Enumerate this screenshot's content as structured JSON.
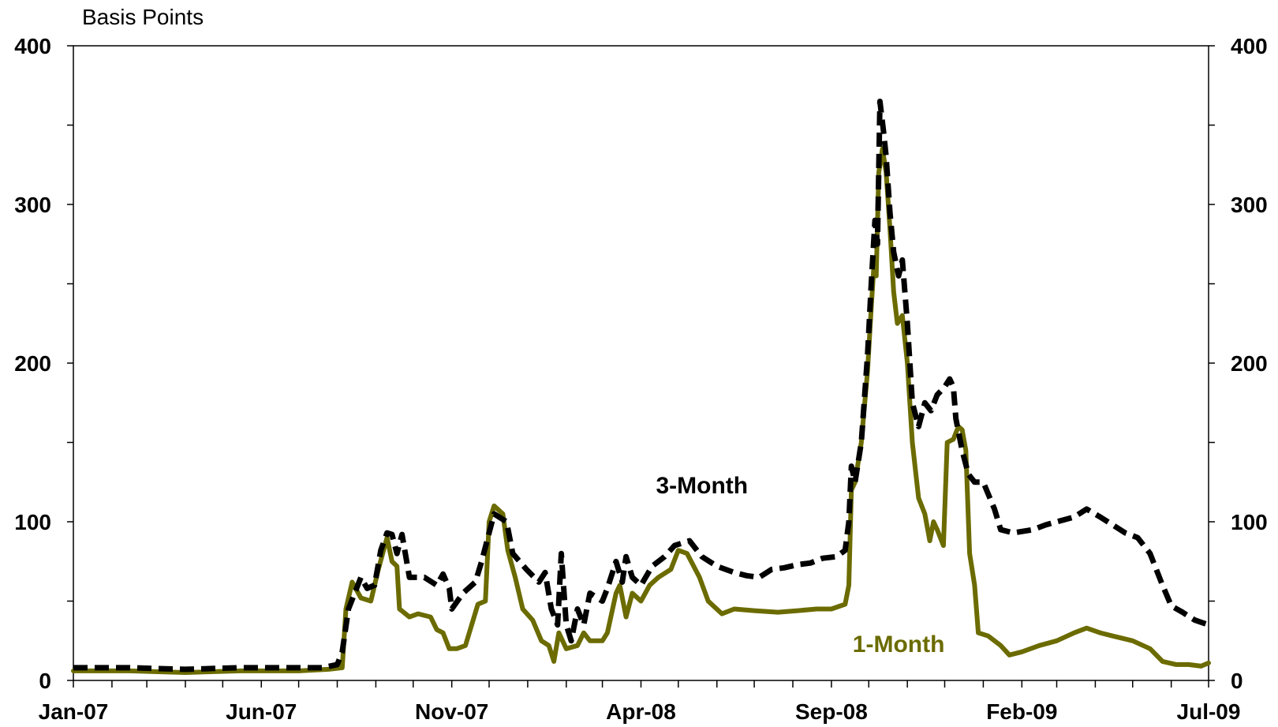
{
  "chart_data": {
    "type": "line",
    "title": "",
    "ylabel": "Basis Points",
    "xlabel": "",
    "ylim": [
      0,
      400
    ],
    "y_ticks": [
      0,
      100,
      200,
      300,
      400
    ],
    "x_range": [
      "2007-01-01",
      "2009-07-01"
    ],
    "x_ticks": [
      {
        "date": "2007-01-01",
        "label": "Jan-07"
      },
      {
        "date": "2007-06-01",
        "label": "Jun-07"
      },
      {
        "date": "2007-11-01",
        "label": "Nov-07"
      },
      {
        "date": "2008-04-01",
        "label": "Apr-08"
      },
      {
        "date": "2008-09-01",
        "label": "Sep-08"
      },
      {
        "date": "2009-02-01",
        "label": "Feb-09"
      },
      {
        "date": "2009-07-01",
        "label": "Jul-09"
      }
    ],
    "grid": false,
    "series": [
      {
        "name": "3-Month",
        "color": "#000000",
        "style": "dashed",
        "points": [
          [
            "2007-01-01",
            8
          ],
          [
            "2007-02-15",
            8
          ],
          [
            "2007-04-01",
            7
          ],
          [
            "2007-05-15",
            8
          ],
          [
            "2007-07-01",
            8
          ],
          [
            "2007-07-20",
            8
          ],
          [
            "2007-08-01",
            10
          ],
          [
            "2007-08-05",
            18
          ],
          [
            "2007-08-10",
            45
          ],
          [
            "2007-08-15",
            55
          ],
          [
            "2007-08-20",
            65
          ],
          [
            "2007-08-25",
            58
          ],
          [
            "2007-08-31",
            60
          ],
          [
            "2007-09-05",
            82
          ],
          [
            "2007-09-10",
            93
          ],
          [
            "2007-09-14",
            92
          ],
          [
            "2007-09-18",
            80
          ],
          [
            "2007-09-22",
            92
          ],
          [
            "2007-09-28",
            65
          ],
          [
            "2007-10-10",
            65
          ],
          [
            "2007-10-20",
            60
          ],
          [
            "2007-10-25",
            67
          ],
          [
            "2007-10-30",
            58
          ],
          [
            "2007-11-01",
            45
          ],
          [
            "2007-11-10",
            55
          ],
          [
            "2007-11-20",
            62
          ],
          [
            "2007-11-25",
            75
          ],
          [
            "2007-11-30",
            90
          ],
          [
            "2007-12-05",
            105
          ],
          [
            "2007-12-15",
            100
          ],
          [
            "2007-12-20",
            80
          ],
          [
            "2007-12-31",
            70
          ],
          [
            "2008-01-10",
            62
          ],
          [
            "2008-01-15",
            68
          ],
          [
            "2008-01-20",
            45
          ],
          [
            "2008-01-25",
            35
          ],
          [
            "2008-01-28",
            80
          ],
          [
            "2008-02-01",
            35
          ],
          [
            "2008-02-05",
            25
          ],
          [
            "2008-02-10",
            45
          ],
          [
            "2008-02-15",
            35
          ],
          [
            "2008-02-20",
            55
          ],
          [
            "2008-03-01",
            50
          ],
          [
            "2008-03-05",
            58
          ],
          [
            "2008-03-12",
            75
          ],
          [
            "2008-03-17",
            62
          ],
          [
            "2008-03-20",
            78
          ],
          [
            "2008-03-25",
            65
          ],
          [
            "2008-04-01",
            60
          ],
          [
            "2008-04-10",
            72
          ],
          [
            "2008-04-20",
            78
          ],
          [
            "2008-04-28",
            85
          ],
          [
            "2008-05-10",
            88
          ],
          [
            "2008-05-20",
            78
          ],
          [
            "2008-06-01",
            72
          ],
          [
            "2008-06-15",
            68
          ],
          [
            "2008-06-25",
            66
          ],
          [
            "2008-07-05",
            65
          ],
          [
            "2008-07-15",
            70
          ],
          [
            "2008-07-25",
            71
          ],
          [
            "2008-08-05",
            73
          ],
          [
            "2008-08-15",
            74
          ],
          [
            "2008-08-25",
            77
          ],
          [
            "2008-09-05",
            78
          ],
          [
            "2008-09-12",
            82
          ],
          [
            "2008-09-15",
            100
          ],
          [
            "2008-09-17",
            135
          ],
          [
            "2008-09-20",
            125
          ],
          [
            "2008-09-25",
            150
          ],
          [
            "2008-09-30",
            205
          ],
          [
            "2008-10-03",
            250
          ],
          [
            "2008-10-06",
            290
          ],
          [
            "2008-10-08",
            275
          ],
          [
            "2008-10-10",
            365
          ],
          [
            "2008-10-13",
            345
          ],
          [
            "2008-10-15",
            330
          ],
          [
            "2008-10-18",
            295
          ],
          [
            "2008-10-21",
            270
          ],
          [
            "2008-10-25",
            255
          ],
          [
            "2008-10-28",
            265
          ],
          [
            "2008-11-01",
            225
          ],
          [
            "2008-11-05",
            175
          ],
          [
            "2008-11-10",
            160
          ],
          [
            "2008-11-15",
            175
          ],
          [
            "2008-11-20",
            170
          ],
          [
            "2008-11-25",
            180
          ],
          [
            "2008-12-01",
            185
          ],
          [
            "2008-12-05",
            190
          ],
          [
            "2008-12-08",
            185
          ],
          [
            "2008-12-10",
            165
          ],
          [
            "2008-12-15",
            145
          ],
          [
            "2008-12-20",
            130
          ],
          [
            "2008-12-25",
            125
          ],
          [
            "2009-01-01",
            125
          ],
          [
            "2009-01-10",
            108
          ],
          [
            "2009-01-15",
            95
          ],
          [
            "2009-01-25",
            93
          ],
          [
            "2009-02-10",
            95
          ],
          [
            "2009-02-20",
            98
          ],
          [
            "2009-03-01",
            100
          ],
          [
            "2009-03-15",
            103
          ],
          [
            "2009-03-25",
            108
          ],
          [
            "2009-04-05",
            103
          ],
          [
            "2009-04-15",
            98
          ],
          [
            "2009-04-25",
            93
          ],
          [
            "2009-05-05",
            90
          ],
          [
            "2009-05-15",
            80
          ],
          [
            "2009-05-25",
            60
          ],
          [
            "2009-06-01",
            47
          ],
          [
            "2009-06-10",
            43
          ],
          [
            "2009-06-20",
            38
          ],
          [
            "2009-07-01",
            35
          ]
        ]
      },
      {
        "name": "1-Month",
        "color": "#6b6b00",
        "style": "solid",
        "points": [
          [
            "2007-01-01",
            6
          ],
          [
            "2007-02-15",
            6
          ],
          [
            "2007-04-01",
            5
          ],
          [
            "2007-05-15",
            6
          ],
          [
            "2007-07-01",
            6
          ],
          [
            "2007-07-25",
            7
          ],
          [
            "2007-08-05",
            8
          ],
          [
            "2007-08-08",
            45
          ],
          [
            "2007-08-13",
            62
          ],
          [
            "2007-08-20",
            52
          ],
          [
            "2007-08-28",
            50
          ],
          [
            "2007-09-03",
            70
          ],
          [
            "2007-09-10",
            90
          ],
          [
            "2007-09-14",
            75
          ],
          [
            "2007-09-18",
            72
          ],
          [
            "2007-09-20",
            45
          ],
          [
            "2007-09-28",
            40
          ],
          [
            "2007-10-05",
            42
          ],
          [
            "2007-10-15",
            40
          ],
          [
            "2007-10-20",
            32
          ],
          [
            "2007-10-25",
            30
          ],
          [
            "2007-10-30",
            20
          ],
          [
            "2007-11-05",
            20
          ],
          [
            "2007-11-12",
            22
          ],
          [
            "2007-11-17",
            35
          ],
          [
            "2007-11-22",
            48
          ],
          [
            "2007-11-28",
            50
          ],
          [
            "2007-12-01",
            100
          ],
          [
            "2007-12-05",
            110
          ],
          [
            "2007-12-12",
            105
          ],
          [
            "2007-12-16",
            82
          ],
          [
            "2007-12-22",
            65
          ],
          [
            "2007-12-28",
            45
          ],
          [
            "2008-01-05",
            38
          ],
          [
            "2008-01-12",
            25
          ],
          [
            "2008-01-18",
            22
          ],
          [
            "2008-01-22",
            12
          ],
          [
            "2008-01-26",
            30
          ],
          [
            "2008-02-01",
            20
          ],
          [
            "2008-02-10",
            22
          ],
          [
            "2008-02-15",
            30
          ],
          [
            "2008-02-20",
            25
          ],
          [
            "2008-03-01",
            25
          ],
          [
            "2008-03-05",
            30
          ],
          [
            "2008-03-12",
            55
          ],
          [
            "2008-03-15",
            60
          ],
          [
            "2008-03-20",
            40
          ],
          [
            "2008-03-25",
            55
          ],
          [
            "2008-04-01",
            50
          ],
          [
            "2008-04-08",
            60
          ],
          [
            "2008-04-15",
            65
          ],
          [
            "2008-04-25",
            70
          ],
          [
            "2008-05-01",
            82
          ],
          [
            "2008-05-08",
            80
          ],
          [
            "2008-05-18",
            65
          ],
          [
            "2008-05-25",
            50
          ],
          [
            "2008-06-05",
            42
          ],
          [
            "2008-06-15",
            45
          ],
          [
            "2008-07-01",
            44
          ],
          [
            "2008-07-20",
            43
          ],
          [
            "2008-08-05",
            44
          ],
          [
            "2008-08-20",
            45
          ],
          [
            "2008-09-01",
            45
          ],
          [
            "2008-09-12",
            48
          ],
          [
            "2008-09-15",
            60
          ],
          [
            "2008-09-17",
            120
          ],
          [
            "2008-09-20",
            125
          ],
          [
            "2008-09-25",
            150
          ],
          [
            "2008-09-30",
            195
          ],
          [
            "2008-10-03",
            235
          ],
          [
            "2008-10-05",
            260
          ],
          [
            "2008-10-07",
            255
          ],
          [
            "2008-10-09",
            320
          ],
          [
            "2008-10-12",
            335
          ],
          [
            "2008-10-15",
            320
          ],
          [
            "2008-10-18",
            285
          ],
          [
            "2008-10-21",
            245
          ],
          [
            "2008-10-24",
            225
          ],
          [
            "2008-10-28",
            230
          ],
          [
            "2008-11-01",
            200
          ],
          [
            "2008-11-05",
            150
          ],
          [
            "2008-11-10",
            115
          ],
          [
            "2008-11-15",
            105
          ],
          [
            "2008-11-19",
            88
          ],
          [
            "2008-11-22",
            100
          ],
          [
            "2008-11-25",
            95
          ],
          [
            "2008-11-30",
            85
          ],
          [
            "2008-12-03",
            150
          ],
          [
            "2008-12-08",
            152
          ],
          [
            "2008-12-12",
            160
          ],
          [
            "2008-12-15",
            158
          ],
          [
            "2008-12-18",
            145
          ],
          [
            "2008-12-21",
            80
          ],
          [
            "2008-12-25",
            60
          ],
          [
            "2008-12-28",
            30
          ],
          [
            "2009-01-05",
            28
          ],
          [
            "2009-01-15",
            22
          ],
          [
            "2009-01-22",
            16
          ],
          [
            "2009-02-01",
            18
          ],
          [
            "2009-02-15",
            22
          ],
          [
            "2009-03-01",
            25
          ],
          [
            "2009-03-15",
            30
          ],
          [
            "2009-03-25",
            33
          ],
          [
            "2009-04-05",
            30
          ],
          [
            "2009-04-15",
            28
          ],
          [
            "2009-05-01",
            25
          ],
          [
            "2009-05-15",
            20
          ],
          [
            "2009-05-25",
            12
          ],
          [
            "2009-06-05",
            10
          ],
          [
            "2009-06-15",
            10
          ],
          [
            "2009-06-25",
            9
          ],
          [
            "2009-07-01",
            11
          ]
        ]
      }
    ],
    "annotations": [
      {
        "text": "3-Month",
        "series": "3-Month",
        "at_date": "2008-05-20",
        "at_value": 118
      },
      {
        "text": "1-Month",
        "series": "1-Month",
        "at_date": "2008-10-25",
        "at_value": 18
      }
    ]
  }
}
